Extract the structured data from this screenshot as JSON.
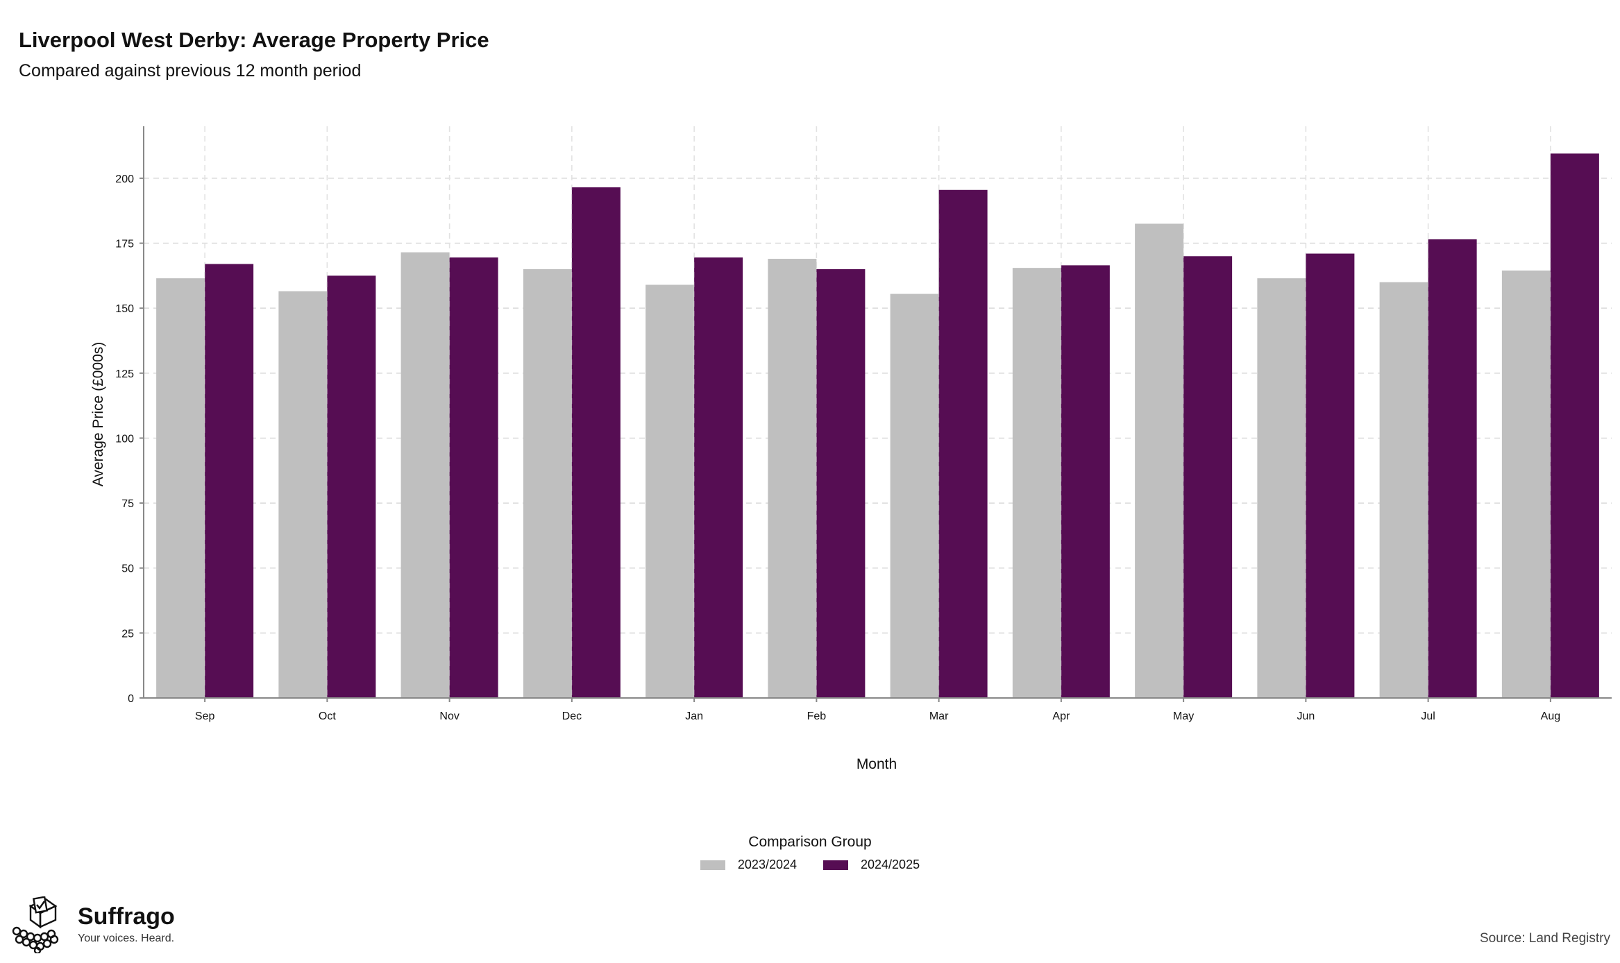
{
  "title": "Liverpool West Derby: Average Property Price",
  "subtitle": "Compared against previous 12 month period",
  "chart_data": {
    "type": "bar",
    "title": "Liverpool West Derby: Average Property Price",
    "subtitle": "Compared against previous 12 month period",
    "xlabel": "Month",
    "ylabel": "Average Price (£000s)",
    "categories": [
      "Sep",
      "Oct",
      "Nov",
      "Dec",
      "Jan",
      "Feb",
      "Mar",
      "Apr",
      "May",
      "Jun",
      "Jul",
      "Aug"
    ],
    "series": [
      {
        "name": "2023/2024",
        "color": "#bfbfbf",
        "values": [
          161.5,
          156.5,
          171.5,
          165.0,
          159.0,
          169.0,
          155.5,
          165.5,
          182.5,
          161.5,
          160.0,
          164.5
        ]
      },
      {
        "name": "2024/2025",
        "color": "#560d53",
        "values": [
          167.0,
          162.5,
          169.5,
          196.5,
          169.5,
          165.0,
          195.5,
          166.5,
          170.0,
          171.0,
          176.5,
          209.5
        ]
      }
    ],
    "ylim": [
      0,
      220
    ],
    "yticks": [
      0,
      25,
      50,
      75,
      100,
      125,
      150,
      175,
      200
    ],
    "grid": true,
    "legend_title": "Comparison Group",
    "legend_position": "bottom"
  },
  "legend": {
    "title": "Comparison Group"
  },
  "brand": {
    "name": "Suffrago",
    "tagline": "Your voices. Heard."
  },
  "source": "Source: Land Registry"
}
